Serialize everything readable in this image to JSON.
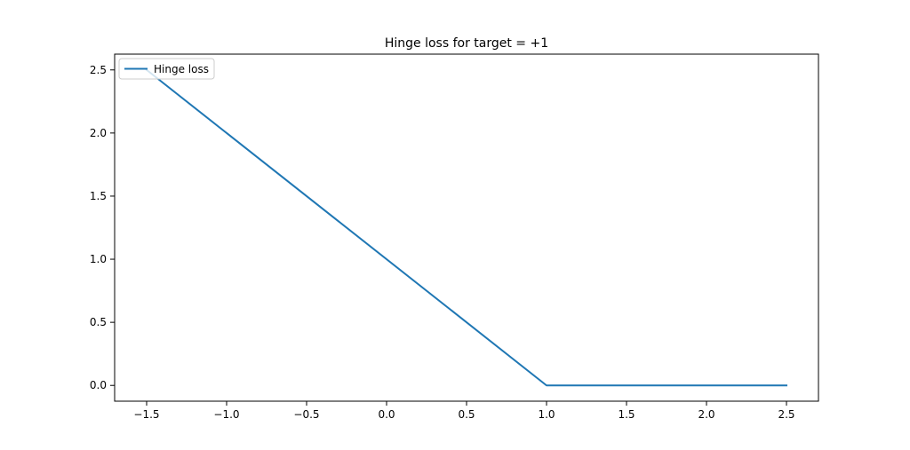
{
  "chart_data": {
    "type": "line",
    "title": "Hinge loss for target = +1",
    "xlabel": "",
    "ylabel": "",
    "xlim": [
      -1.7,
      2.7
    ],
    "ylim": [
      -0.125,
      2.625
    ],
    "xticks": [
      -1.5,
      -1.0,
      -0.5,
      0.0,
      0.5,
      1.0,
      1.5,
      2.0,
      2.5
    ],
    "xtick_labels": [
      "−1.5",
      "−1.0",
      "−0.5",
      "0.0",
      "0.5",
      "1.0",
      "1.5",
      "2.0",
      "2.5"
    ],
    "yticks": [
      0.0,
      0.5,
      1.0,
      1.5,
      2.0,
      2.5
    ],
    "ytick_labels": [
      "0.0",
      "0.5",
      "1.0",
      "1.5",
      "2.0",
      "2.5"
    ],
    "grid": false,
    "legend_position": "upper-left",
    "series": [
      {
        "name": "Hinge loss",
        "color": "#1f77b4",
        "x": [
          -1.5,
          1.0,
          2.5
        ],
        "y": [
          2.5,
          0.0,
          0.0
        ]
      }
    ]
  }
}
